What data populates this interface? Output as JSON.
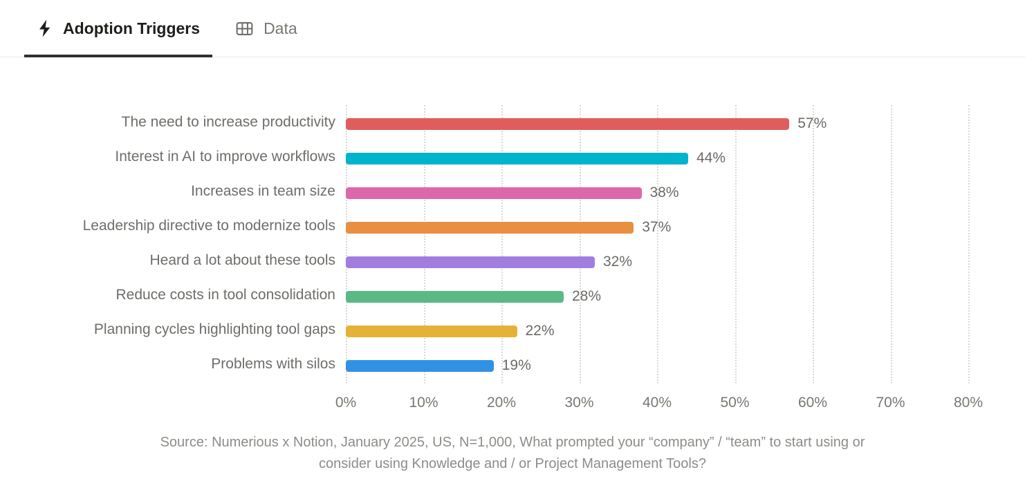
{
  "tabs": [
    {
      "label": "Adoption Triggers",
      "icon": "bolt-icon",
      "active": true
    },
    {
      "label": "Data",
      "icon": "table-icon",
      "active": false
    }
  ],
  "chart_data": {
    "type": "bar",
    "orientation": "horizontal",
    "title": "Adoption Triggers",
    "categories": [
      "The need to increase productivity",
      "Interest in AI to improve workflows",
      "Increases in team size",
      "Leadership directive to modernize tools",
      "Heard a lot about these tools",
      "Reduce costs in tool consolidation",
      "Planning cycles highlighting tool gaps",
      "Problems with silos"
    ],
    "values": [
      57,
      44,
      38,
      37,
      32,
      28,
      22,
      19
    ],
    "value_labels": [
      "57%",
      "44%",
      "38%",
      "37%",
      "32%",
      "28%",
      "22%",
      "19%"
    ],
    "colors": [
      "#e05d5d",
      "#00b4cd",
      "#dc68ac",
      "#e98f42",
      "#a17de0",
      "#5bba84",
      "#e5b236",
      "#3191e4"
    ],
    "xlim": [
      0,
      80
    ],
    "x_ticks": [
      "0%",
      "10%",
      "20%",
      "30%",
      "40%",
      "50%",
      "60%",
      "70%",
      "80%"
    ],
    "grid": "dotted-vertical",
    "legend": "none"
  },
  "source": {
    "lines": [
      "Source: Numerious x Notion, January 2025, US, N=1,000, What prompted your “company” / “team” to start using or",
      "consider using Knowledge and / or Project Management Tools?"
    ]
  },
  "ui_colors": {
    "tab_active_text": "#1f1e1b",
    "tab_inactive_text": "#78766f",
    "tab_underline": "#32302c",
    "divider": "#e9e8e6",
    "category_text": "#6e6d69",
    "value_text": "#6b6a66",
    "tick_text": "#787771",
    "source_text": "#8d8c88",
    "gridline": "#d9d8d5"
  }
}
